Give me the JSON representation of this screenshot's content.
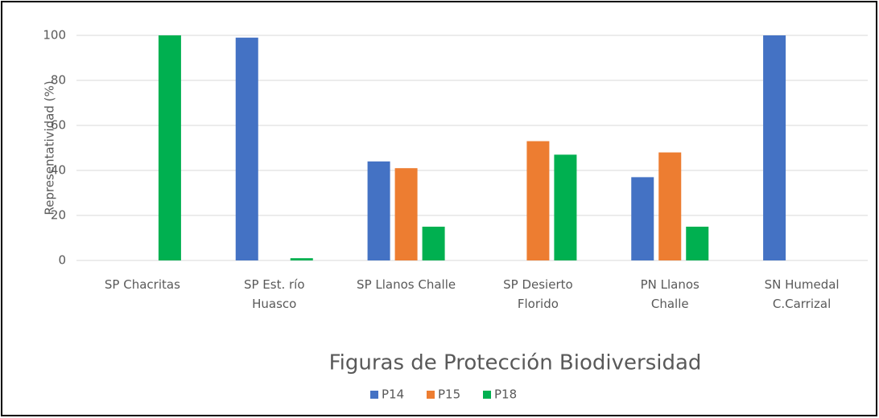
{
  "chart_data": {
    "type": "bar",
    "y_axis_label": "Representatividad (%)",
    "x_axis_label": "Figuras de Protección Biodiversidad",
    "categories": [
      "SP Chacritas",
      "SP Est. río Huasco",
      "SP Llanos Challe",
      "SP Desierto Florido",
      "PN Llanos Challe",
      "SN Humedal C.Carrizal"
    ],
    "series": [
      {
        "name": "P14",
        "color": "#4472c4",
        "values": [
          0,
          99,
          44,
          0,
          37,
          100
        ]
      },
      {
        "name": "P15",
        "color": "#ed7d31",
        "values": [
          0,
          0,
          41,
          53,
          48,
          0
        ]
      },
      {
        "name": "P18",
        "color": "#00b050",
        "values": [
          100,
          1,
          15,
          47,
          15,
          0
        ]
      }
    ],
    "ylim": [
      0,
      100
    ],
    "yticks": [
      0,
      20,
      40,
      60,
      80,
      100
    ],
    "grid": true,
    "legend": "bottom"
  }
}
